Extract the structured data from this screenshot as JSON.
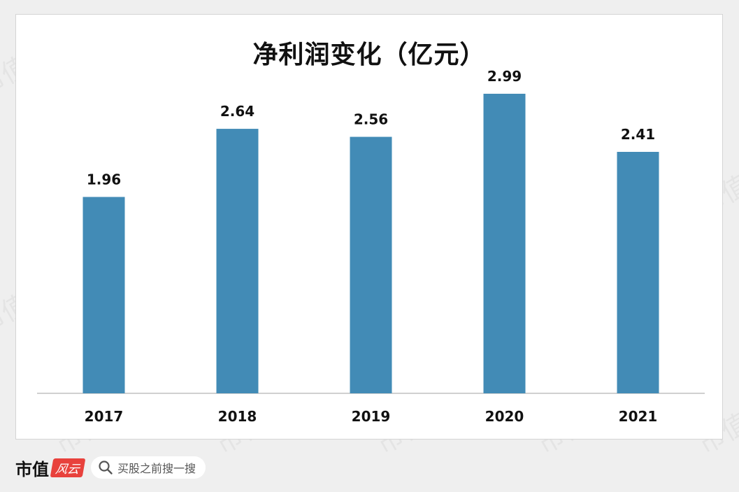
{
  "chart_data": {
    "type": "bar",
    "title": "净利润变化（亿元）",
    "categories": [
      "2017",
      "2018",
      "2019",
      "2020",
      "2021"
    ],
    "values": [
      1.96,
      2.64,
      2.56,
      2.99,
      2.41
    ],
    "xlabel": "",
    "ylabel": "",
    "ylim": [
      0,
      3.36
    ],
    "grid": false,
    "legend": "none",
    "bar_color": "#428bb6",
    "data_labels": [
      "1.96",
      "2.64",
      "2.56",
      "2.99",
      "2.41"
    ]
  },
  "footer": {
    "brand_name": "市值",
    "brand_logo": "风云",
    "search_placeholder": "买股之前搜一搜"
  },
  "watermark": "市值风云",
  "colors": {
    "background": "#efefef",
    "card": "#ffffff",
    "bar": "#428bb6",
    "axis": "#d0d0d0"
  }
}
